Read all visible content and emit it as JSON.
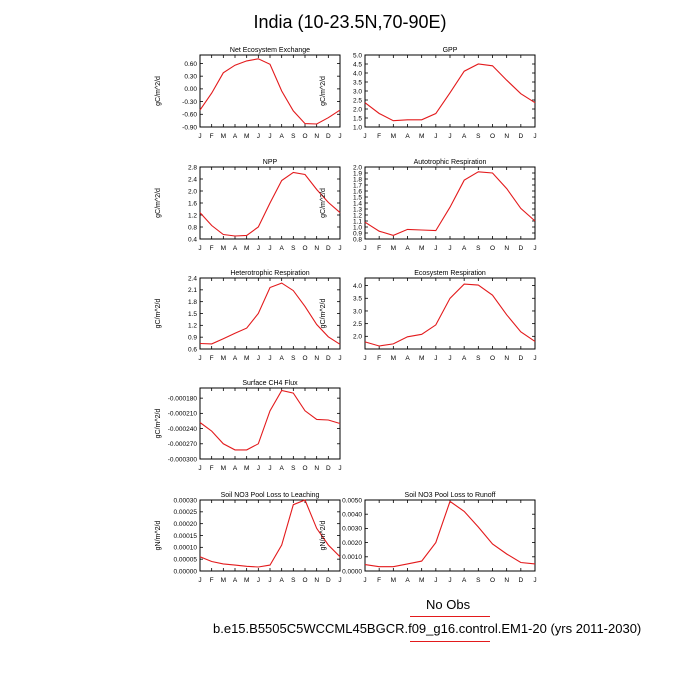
{
  "figure": {
    "title": "India (10-23.5N,70-90E)",
    "months": [
      "J",
      "F",
      "M",
      "A",
      "M",
      "J",
      "J",
      "A",
      "S",
      "O",
      "N",
      "D",
      "J"
    ],
    "series_color": "#e31a1c"
  },
  "chart_data": [
    {
      "type": "line",
      "title": "Net Ecosystem Exchange",
      "ylabel": "gC/m^2/d",
      "ylim": [
        -0.9,
        0.8
      ],
      "yticks": [
        -0.9,
        -0.6,
        -0.3,
        0.0,
        0.3,
        0.6
      ],
      "ytick_labels": [
        "-0.90",
        "-0.60",
        "-0.30",
        "0.00",
        "0.30",
        "0.60"
      ],
      "values": [
        -0.5,
        -0.1,
        0.38,
        0.56,
        0.66,
        0.71,
        0.58,
        -0.05,
        -0.52,
        -0.82,
        -0.83,
        -0.68,
        -0.5
      ]
    },
    {
      "type": "line",
      "title": "GPP",
      "ylabel": "gC/m^2/d",
      "ylim": [
        1.0,
        5.0
      ],
      "yticks": [
        1.0,
        1.5,
        2.0,
        2.5,
        3.0,
        3.5,
        4.0,
        4.5,
        5.0
      ],
      "ytick_labels": [
        "1.0",
        "1.5",
        "2.0",
        "2.5",
        "3.0",
        "3.5",
        "4.0",
        "4.5",
        "5.0"
      ],
      "values": [
        2.35,
        1.75,
        1.35,
        1.4,
        1.4,
        1.75,
        2.9,
        4.1,
        4.5,
        4.4,
        3.6,
        2.85,
        2.35
      ]
    },
    {
      "type": "line",
      "title": "NPP",
      "ylabel": "gC/m^2/d",
      "ylim": [
        0.4,
        2.8
      ],
      "yticks": [
        0.4,
        0.8,
        1.2,
        1.6,
        2.0,
        2.4,
        2.8
      ],
      "ytick_labels": [
        "0.4",
        "0.8",
        "1.2",
        "1.6",
        "2.0",
        "2.4",
        "2.8"
      ],
      "values": [
        1.28,
        0.85,
        0.55,
        0.5,
        0.52,
        0.8,
        1.6,
        2.35,
        2.62,
        2.55,
        2.05,
        1.62,
        1.28
      ]
    },
    {
      "type": "line",
      "title": "Autotrophic Respiration",
      "ylabel": "gC/m^2/d",
      "ylim": [
        0.8,
        2.0
      ],
      "yticks": [
        0.8,
        0.9,
        1.0,
        1.1,
        1.2,
        1.3,
        1.4,
        1.5,
        1.6,
        1.7,
        1.8,
        1.9,
        2.0
      ],
      "ytick_labels": [
        "0.8",
        "0.9",
        "1.0",
        "1.1",
        "1.2",
        "1.3",
        "1.4",
        "1.5",
        "1.6",
        "1.7",
        "1.8",
        "1.9",
        "2.0"
      ],
      "values": [
        1.08,
        0.93,
        0.86,
        0.96,
        0.95,
        0.94,
        1.33,
        1.78,
        1.92,
        1.9,
        1.64,
        1.31,
        1.1
      ]
    },
    {
      "type": "line",
      "title": "Heterotrophic Respiration",
      "ylabel": "gC/m^2/d",
      "ylim": [
        0.6,
        2.4
      ],
      "yticks": [
        0.6,
        0.9,
        1.2,
        1.5,
        1.8,
        2.1,
        2.4
      ],
      "ytick_labels": [
        "0.6",
        "0.9",
        "1.2",
        "1.5",
        "1.8",
        "2.1",
        "2.4"
      ],
      "values": [
        0.74,
        0.73,
        0.86,
        1.0,
        1.13,
        1.5,
        2.16,
        2.27,
        2.08,
        1.68,
        1.22,
        0.91,
        0.72
      ]
    },
    {
      "type": "line",
      "title": "Ecosystem Respiration",
      "ylabel": "gC/m^2/d",
      "ylim": [
        1.5,
        4.3
      ],
      "yticks": [
        2.0,
        2.5,
        3.0,
        3.5,
        4.0
      ],
      "ytick_labels": [
        "2.0",
        "2.5",
        "3.0",
        "3.5",
        "4.0"
      ],
      "values": [
        1.78,
        1.62,
        1.7,
        1.98,
        2.08,
        2.45,
        3.5,
        4.06,
        4.02,
        3.62,
        2.85,
        2.18,
        1.8
      ]
    },
    {
      "type": "line",
      "title": "Surface CH4 Flux",
      "ylabel": "gC/m^2/d",
      "ylim": [
        -0.0003,
        -0.00016
      ],
      "yticks": [
        -0.0003,
        -0.00027,
        -0.00024,
        -0.00021,
        -0.00018
      ],
      "ytick_labels": [
        "-0.000300",
        "-0.000270",
        "-0.000240",
        "-0.000210",
        "-0.000180"
      ],
      "values": [
        -0.000228,
        -0.000245,
        -0.00027,
        -0.000282,
        -0.000282,
        -0.00027,
        -0.000205,
        -0.000165,
        -0.00017,
        -0.000205,
        -0.000222,
        -0.000223,
        -0.00023
      ]
    },
    {
      "type": "line",
      "title": "Soil NO3 Pool Loss to Leaching",
      "ylabel": "gN/m^2/d",
      "ylim": [
        0,
        0.0003
      ],
      "yticks": [
        0,
        5e-05,
        0.0001,
        0.00015,
        0.0002,
        0.00025,
        0.0003
      ],
      "ytick_labels": [
        "0.00000",
        "0.00005",
        "0.00010",
        "0.00015",
        "0.00020",
        "0.00025",
        "0.00030"
      ],
      "values": [
        6e-05,
        4e-05,
        3e-05,
        2.5e-05,
        2e-05,
        1.7e-05,
        2.5e-05,
        0.00011,
        0.00028,
        0.0003,
        0.00018,
        0.00011,
        6e-05
      ]
    },
    {
      "type": "line",
      "title": "Soil NO3 Pool Loss to Runoff",
      "ylabel": "gN/m^2/d",
      "ylim": [
        0,
        0.005
      ],
      "yticks": [
        0,
        0.001,
        0.002,
        0.003,
        0.004,
        0.005
      ],
      "ytick_labels": [
        "0.0000",
        "0.0010",
        "0.0020",
        "0.0030",
        "0.0040",
        "0.0050"
      ],
      "values": [
        0.00045,
        0.0003,
        0.0003,
        0.0005,
        0.0007,
        0.002,
        0.0049,
        0.0042,
        0.0031,
        0.0019,
        0.0012,
        0.0006,
        0.0005
      ]
    }
  ],
  "legend": {
    "obs_label": "No Obs",
    "case_label": "b.e15.B5505C5WCCML45BGCR.f09_g16.control.EM1-20 (yrs 2011-2030)"
  }
}
